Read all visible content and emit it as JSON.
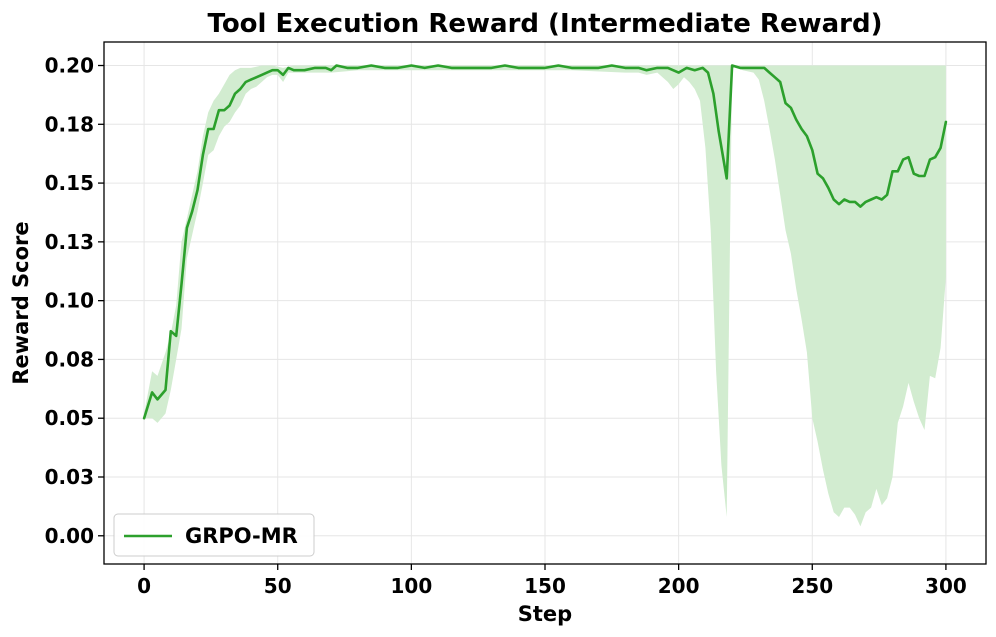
{
  "chart_data": {
    "type": "line",
    "title": "Tool Execution Reward (Intermediate Reward)",
    "xlabel": "Step",
    "ylabel": "Reward Score",
    "xlim": [
      -15,
      315
    ],
    "ylim": [
      -0.012,
      0.21
    ],
    "xticks": [
      0,
      50,
      100,
      150,
      200,
      250,
      300
    ],
    "xtick_labels": [
      "0",
      "50",
      "100",
      "150",
      "200",
      "250",
      "300"
    ],
    "yticks": [
      0.0,
      0.025,
      0.05,
      0.075,
      0.1,
      0.125,
      0.15,
      0.175,
      0.2
    ],
    "ytick_labels": [
      "0.00",
      "0.03",
      "0.05",
      "0.08",
      "0.10",
      "0.13",
      "0.15",
      "0.18",
      "0.20"
    ],
    "grid": true,
    "legend_position": "lower-left",
    "colors": {
      "line": "#2ca02c",
      "band": "#d2ecd0"
    },
    "series": [
      {
        "name": "GRPO-MR",
        "points": [
          [
            0,
            0.05
          ],
          [
            3,
            0.061
          ],
          [
            5,
            0.058
          ],
          [
            8,
            0.062
          ],
          [
            10,
            0.087
          ],
          [
            12,
            0.085
          ],
          [
            14,
            0.107
          ],
          [
            16,
            0.131
          ],
          [
            18,
            0.138
          ],
          [
            20,
            0.147
          ],
          [
            22,
            0.162
          ],
          [
            24,
            0.173
          ],
          [
            26,
            0.173
          ],
          [
            28,
            0.181
          ],
          [
            30,
            0.181
          ],
          [
            32,
            0.183
          ],
          [
            34,
            0.188
          ],
          [
            36,
            0.19
          ],
          [
            38,
            0.193
          ],
          [
            40,
            0.194
          ],
          [
            42,
            0.195
          ],
          [
            44,
            0.196
          ],
          [
            46,
            0.197
          ],
          [
            48,
            0.198
          ],
          [
            50,
            0.198
          ],
          [
            52,
            0.196
          ],
          [
            54,
            0.199
          ],
          [
            56,
            0.198
          ],
          [
            60,
            0.198
          ],
          [
            64,
            0.199
          ],
          [
            68,
            0.199
          ],
          [
            70,
            0.198
          ],
          [
            72,
            0.2
          ],
          [
            76,
            0.199
          ],
          [
            80,
            0.199
          ],
          [
            85,
            0.2
          ],
          [
            90,
            0.199
          ],
          [
            95,
            0.199
          ],
          [
            100,
            0.2
          ],
          [
            105,
            0.199
          ],
          [
            110,
            0.2
          ],
          [
            115,
            0.199
          ],
          [
            120,
            0.199
          ],
          [
            125,
            0.199
          ],
          [
            130,
            0.199
          ],
          [
            135,
            0.2
          ],
          [
            140,
            0.199
          ],
          [
            145,
            0.199
          ],
          [
            150,
            0.199
          ],
          [
            155,
            0.2
          ],
          [
            160,
            0.199
          ],
          [
            165,
            0.199
          ],
          [
            170,
            0.199
          ],
          [
            175,
            0.2
          ],
          [
            180,
            0.199
          ],
          [
            185,
            0.199
          ],
          [
            188,
            0.198
          ],
          [
            192,
            0.199
          ],
          [
            196,
            0.199
          ],
          [
            200,
            0.197
          ],
          [
            203,
            0.199
          ],
          [
            206,
            0.198
          ],
          [
            209,
            0.199
          ],
          [
            211,
            0.197
          ],
          [
            213,
            0.188
          ],
          [
            215,
            0.172
          ],
          [
            218,
            0.152
          ],
          [
            220,
            0.2
          ],
          [
            223,
            0.199
          ],
          [
            226,
            0.199
          ],
          [
            230,
            0.199
          ],
          [
            232,
            0.199
          ],
          [
            234,
            0.197
          ],
          [
            236,
            0.195
          ],
          [
            238,
            0.193
          ],
          [
            240,
            0.184
          ],
          [
            242,
            0.182
          ],
          [
            244,
            0.177
          ],
          [
            246,
            0.173
          ],
          [
            248,
            0.17
          ],
          [
            250,
            0.164
          ],
          [
            252,
            0.154
          ],
          [
            254,
            0.152
          ],
          [
            256,
            0.148
          ],
          [
            258,
            0.143
          ],
          [
            260,
            0.141
          ],
          [
            262,
            0.143
          ],
          [
            264,
            0.142
          ],
          [
            266,
            0.142
          ],
          [
            268,
            0.14
          ],
          [
            270,
            0.142
          ],
          [
            272,
            0.143
          ],
          [
            274,
            0.144
          ],
          [
            276,
            0.143
          ],
          [
            278,
            0.145
          ],
          [
            280,
            0.155
          ],
          [
            282,
            0.155
          ],
          [
            284,
            0.16
          ],
          [
            286,
            0.161
          ],
          [
            288,
            0.154
          ],
          [
            290,
            0.153
          ],
          [
            292,
            0.153
          ],
          [
            294,
            0.16
          ],
          [
            296,
            0.161
          ],
          [
            298,
            0.165
          ],
          [
            300,
            0.176
          ]
        ],
        "band_upper": [
          [
            0,
            0.052
          ],
          [
            3,
            0.07
          ],
          [
            5,
            0.068
          ],
          [
            8,
            0.078
          ],
          [
            10,
            0.086
          ],
          [
            12,
            0.098
          ],
          [
            14,
            0.125
          ],
          [
            16,
            0.135
          ],
          [
            18,
            0.145
          ],
          [
            20,
            0.155
          ],
          [
            22,
            0.17
          ],
          [
            24,
            0.18
          ],
          [
            26,
            0.185
          ],
          [
            28,
            0.188
          ],
          [
            30,
            0.192
          ],
          [
            32,
            0.196
          ],
          [
            34,
            0.198
          ],
          [
            36,
            0.199
          ],
          [
            40,
            0.199
          ],
          [
            44,
            0.2
          ],
          [
            48,
            0.2
          ],
          [
            52,
            0.199
          ],
          [
            56,
            0.2
          ],
          [
            300,
            0.2
          ]
        ],
        "band_lower": [
          [
            0,
            0.05
          ],
          [
            3,
            0.05
          ],
          [
            5,
            0.048
          ],
          [
            8,
            0.052
          ],
          [
            10,
            0.062
          ],
          [
            12,
            0.075
          ],
          [
            14,
            0.088
          ],
          [
            16,
            0.118
          ],
          [
            18,
            0.128
          ],
          [
            20,
            0.138
          ],
          [
            22,
            0.15
          ],
          [
            24,
            0.162
          ],
          [
            26,
            0.164
          ],
          [
            28,
            0.17
          ],
          [
            30,
            0.174
          ],
          [
            32,
            0.176
          ],
          [
            34,
            0.18
          ],
          [
            36,
            0.183
          ],
          [
            38,
            0.188
          ],
          [
            40,
            0.19
          ],
          [
            42,
            0.191
          ],
          [
            44,
            0.193
          ],
          [
            46,
            0.195
          ],
          [
            48,
            0.196
          ],
          [
            50,
            0.196
          ],
          [
            52,
            0.193
          ],
          [
            54,
            0.197
          ],
          [
            56,
            0.197
          ],
          [
            60,
            0.197
          ],
          [
            70,
            0.197
          ],
          [
            80,
            0.198
          ],
          [
            100,
            0.198
          ],
          [
            120,
            0.198
          ],
          [
            140,
            0.198
          ],
          [
            160,
            0.198
          ],
          [
            180,
            0.197
          ],
          [
            185,
            0.197
          ],
          [
            188,
            0.196
          ],
          [
            192,
            0.197
          ],
          [
            196,
            0.193
          ],
          [
            198,
            0.19
          ],
          [
            200,
            0.192
          ],
          [
            202,
            0.195
          ],
          [
            204,
            0.193
          ],
          [
            206,
            0.19
          ],
          [
            208,
            0.185
          ],
          [
            210,
            0.165
          ],
          [
            212,
            0.13
          ],
          [
            214,
            0.07
          ],
          [
            216,
            0.03
          ],
          [
            218,
            0.008
          ],
          [
            220,
            0.2
          ],
          [
            224,
            0.198
          ],
          [
            228,
            0.197
          ],
          [
            230,
            0.194
          ],
          [
            232,
            0.185
          ],
          [
            234,
            0.173
          ],
          [
            236,
            0.16
          ],
          [
            238,
            0.145
          ],
          [
            240,
            0.13
          ],
          [
            242,
            0.12
          ],
          [
            244,
            0.105
          ],
          [
            246,
            0.092
          ],
          [
            248,
            0.078
          ],
          [
            250,
            0.05
          ],
          [
            252,
            0.04
          ],
          [
            254,
            0.028
          ],
          [
            256,
            0.018
          ],
          [
            258,
            0.01
          ],
          [
            260,
            0.008
          ],
          [
            262,
            0.012
          ],
          [
            264,
            0.012
          ],
          [
            266,
            0.009
          ],
          [
            268,
            0.004
          ],
          [
            270,
            0.01
          ],
          [
            272,
            0.012
          ],
          [
            274,
            0.02
          ],
          [
            276,
            0.013
          ],
          [
            278,
            0.016
          ],
          [
            280,
            0.025
          ],
          [
            282,
            0.048
          ],
          [
            284,
            0.055
          ],
          [
            286,
            0.065
          ],
          [
            288,
            0.057
          ],
          [
            290,
            0.05
          ],
          [
            292,
            0.045
          ],
          [
            294,
            0.068
          ],
          [
            296,
            0.067
          ],
          [
            298,
            0.08
          ],
          [
            300,
            0.11
          ]
        ]
      }
    ]
  }
}
